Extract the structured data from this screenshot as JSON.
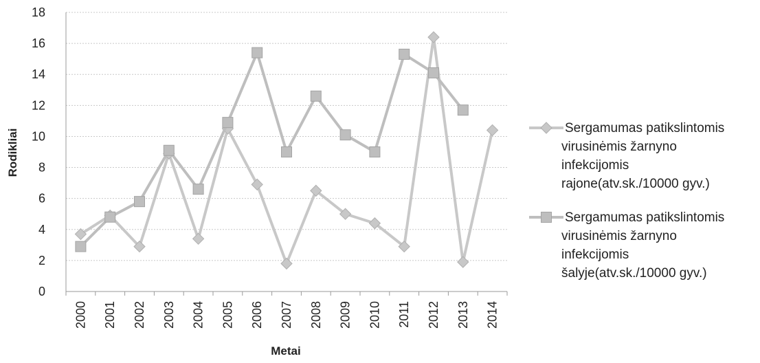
{
  "chart_data": {
    "type": "line",
    "title": "",
    "xlabel": "Metai",
    "ylabel": "Rodikliai",
    "ylim": [
      0,
      18
    ],
    "yticks": [
      0,
      2,
      4,
      6,
      8,
      10,
      12,
      14,
      16,
      18
    ],
    "categories": [
      "2000",
      "2001",
      "2002",
      "2003",
      "2004",
      "2005",
      "2006",
      "2007",
      "2008",
      "2009",
      "2010",
      "2011",
      "2012",
      "2013",
      "2014"
    ],
    "grid": true,
    "legend_position": "right",
    "series": [
      {
        "name": "Sergamumas patikslintomis virusinėmis žarnyno infekcijomis rajone(atv.sk./10000 gyv.)",
        "name_lines": [
          "Sergamumas patikslintomis",
          "virusinėmis žarnyno",
          "infekcijomis",
          "rajone(atv.sk./10000 gyv.)"
        ],
        "marker": "diamond",
        "color": "#c8c8c8",
        "values": [
          3.7,
          4.9,
          2.9,
          8.9,
          3.4,
          10.5,
          6.9,
          1.8,
          6.5,
          5.0,
          4.4,
          2.9,
          16.4,
          1.9,
          10.4
        ]
      },
      {
        "name": "Sergamumas patikslintomis virusinėmis žarnyno infekcijomis šalyje(atv.sk./10000 gyv.)",
        "name_lines": [
          "Sergamumas patikslintomis",
          "virusinėmis žarnyno",
          "infekcijomis",
          "šalyje(atv.sk./10000 gyv.)"
        ],
        "marker": "square",
        "color": "#bebebe",
        "values": [
          2.9,
          4.8,
          5.8,
          9.1,
          6.6,
          10.9,
          15.4,
          9.0,
          12.6,
          10.1,
          9.0,
          15.3,
          14.1,
          11.7,
          null
        ]
      }
    ]
  }
}
